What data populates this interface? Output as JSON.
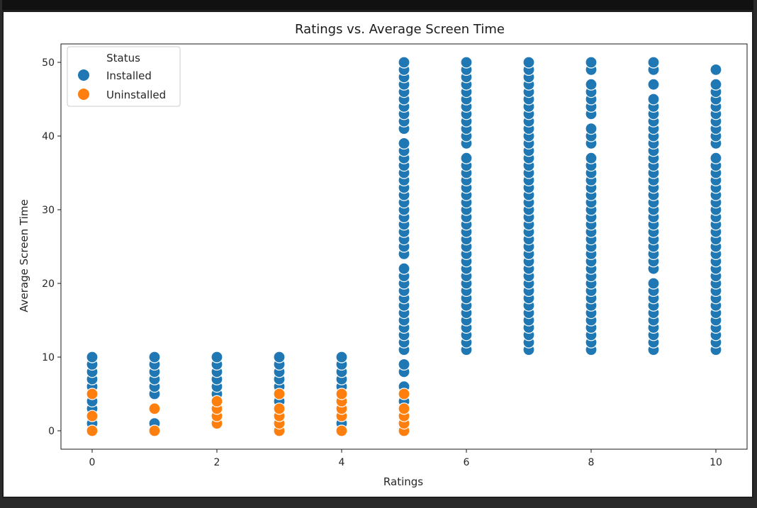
{
  "chart_data": {
    "type": "scatter",
    "title": "Ratings vs. Average Screen Time",
    "xlabel": "Ratings",
    "ylabel": "Average Screen Time",
    "xlim": [
      -0.5,
      10.5
    ],
    "ylim": [
      -2.5,
      52.5
    ],
    "xticks": [
      0,
      2,
      4,
      6,
      8,
      10
    ],
    "yticks": [
      0,
      10,
      20,
      30,
      40,
      50
    ],
    "grid": false,
    "legend": {
      "title": "Status",
      "placement": "top-left",
      "entries": [
        "Installed",
        "Uninstalled"
      ]
    },
    "series": [
      {
        "name": "Installed",
        "color": "#1f77b4",
        "points": [
          [
            0,
            1
          ],
          [
            0,
            3
          ],
          [
            0,
            4
          ],
          [
            0,
            6
          ],
          [
            0,
            7
          ],
          [
            0,
            8
          ],
          [
            0,
            9
          ],
          [
            0,
            10
          ],
          [
            1,
            1
          ],
          [
            1,
            5
          ],
          [
            1,
            6
          ],
          [
            1,
            7
          ],
          [
            1,
            8
          ],
          [
            1,
            9
          ],
          [
            1,
            10
          ],
          [
            2,
            5
          ],
          [
            2,
            6
          ],
          [
            2,
            7
          ],
          [
            2,
            8
          ],
          [
            2,
            9
          ],
          [
            2,
            10
          ],
          [
            3,
            4
          ],
          [
            3,
            6
          ],
          [
            3,
            7
          ],
          [
            3,
            8
          ],
          [
            3,
            9
          ],
          [
            3,
            10
          ],
          [
            4,
            1
          ],
          [
            4,
            6
          ],
          [
            4,
            7
          ],
          [
            4,
            8
          ],
          [
            4,
            9
          ],
          [
            4,
            10
          ],
          [
            5,
            4
          ],
          [
            5,
            6
          ],
          [
            5,
            8
          ],
          [
            5,
            9
          ],
          [
            5,
            11
          ],
          [
            5,
            12
          ],
          [
            5,
            13
          ],
          [
            5,
            14
          ],
          [
            5,
            15
          ],
          [
            5,
            16
          ],
          [
            5,
            17
          ],
          [
            5,
            18
          ],
          [
            5,
            19
          ],
          [
            5,
            20
          ],
          [
            5,
            21
          ],
          [
            5,
            22
          ],
          [
            5,
            24
          ],
          [
            5,
            25
          ],
          [
            5,
            26
          ],
          [
            5,
            27
          ],
          [
            5,
            28
          ],
          [
            5,
            29
          ],
          [
            5,
            30
          ],
          [
            5,
            31
          ],
          [
            5,
            32
          ],
          [
            5,
            33
          ],
          [
            5,
            34
          ],
          [
            5,
            35
          ],
          [
            5,
            36
          ],
          [
            5,
            37
          ],
          [
            5,
            38
          ],
          [
            5,
            39
          ],
          [
            5,
            41
          ],
          [
            5,
            42
          ],
          [
            5,
            43
          ],
          [
            5,
            44
          ],
          [
            5,
            45
          ],
          [
            5,
            46
          ],
          [
            5,
            47
          ],
          [
            5,
            48
          ],
          [
            5,
            49
          ],
          [
            5,
            50
          ],
          [
            6,
            11
          ],
          [
            6,
            12
          ],
          [
            6,
            13
          ],
          [
            6,
            14
          ],
          [
            6,
            15
          ],
          [
            6,
            16
          ],
          [
            6,
            17
          ],
          [
            6,
            18
          ],
          [
            6,
            19
          ],
          [
            6,
            20
          ],
          [
            6,
            21
          ],
          [
            6,
            22
          ],
          [
            6,
            23
          ],
          [
            6,
            24
          ],
          [
            6,
            25
          ],
          [
            6,
            26
          ],
          [
            6,
            27
          ],
          [
            6,
            28
          ],
          [
            6,
            29
          ],
          [
            6,
            30
          ],
          [
            6,
            31
          ],
          [
            6,
            32
          ],
          [
            6,
            33
          ],
          [
            6,
            34
          ],
          [
            6,
            35
          ],
          [
            6,
            36
          ],
          [
            6,
            37
          ],
          [
            6,
            39
          ],
          [
            6,
            40
          ],
          [
            6,
            41
          ],
          [
            6,
            42
          ],
          [
            6,
            43
          ],
          [
            6,
            44
          ],
          [
            6,
            45
          ],
          [
            6,
            46
          ],
          [
            6,
            47
          ],
          [
            6,
            48
          ],
          [
            6,
            49
          ],
          [
            6,
            50
          ],
          [
            7,
            11
          ],
          [
            7,
            12
          ],
          [
            7,
            13
          ],
          [
            7,
            14
          ],
          [
            7,
            15
          ],
          [
            7,
            16
          ],
          [
            7,
            17
          ],
          [
            7,
            18
          ],
          [
            7,
            19
          ],
          [
            7,
            20
          ],
          [
            7,
            21
          ],
          [
            7,
            22
          ],
          [
            7,
            23
          ],
          [
            7,
            24
          ],
          [
            7,
            25
          ],
          [
            7,
            26
          ],
          [
            7,
            27
          ],
          [
            7,
            28
          ],
          [
            7,
            29
          ],
          [
            7,
            30
          ],
          [
            7,
            31
          ],
          [
            7,
            32
          ],
          [
            7,
            33
          ],
          [
            7,
            34
          ],
          [
            7,
            35
          ],
          [
            7,
            36
          ],
          [
            7,
            37
          ],
          [
            7,
            38
          ],
          [
            7,
            39
          ],
          [
            7,
            40
          ],
          [
            7,
            41
          ],
          [
            7,
            42
          ],
          [
            7,
            43
          ],
          [
            7,
            44
          ],
          [
            7,
            45
          ],
          [
            7,
            46
          ],
          [
            7,
            47
          ],
          [
            7,
            48
          ],
          [
            7,
            49
          ],
          [
            7,
            50
          ],
          [
            8,
            11
          ],
          [
            8,
            12
          ],
          [
            8,
            13
          ],
          [
            8,
            14
          ],
          [
            8,
            15
          ],
          [
            8,
            16
          ],
          [
            8,
            17
          ],
          [
            8,
            18
          ],
          [
            8,
            19
          ],
          [
            8,
            20
          ],
          [
            8,
            21
          ],
          [
            8,
            22
          ],
          [
            8,
            23
          ],
          [
            8,
            24
          ],
          [
            8,
            25
          ],
          [
            8,
            26
          ],
          [
            8,
            27
          ],
          [
            8,
            28
          ],
          [
            8,
            29
          ],
          [
            8,
            30
          ],
          [
            8,
            31
          ],
          [
            8,
            32
          ],
          [
            8,
            33
          ],
          [
            8,
            34
          ],
          [
            8,
            35
          ],
          [
            8,
            36
          ],
          [
            8,
            37
          ],
          [
            8,
            39
          ],
          [
            8,
            40
          ],
          [
            8,
            41
          ],
          [
            8,
            43
          ],
          [
            8,
            44
          ],
          [
            8,
            45
          ],
          [
            8,
            46
          ],
          [
            8,
            47
          ],
          [
            8,
            49
          ],
          [
            8,
            50
          ],
          [
            9,
            11
          ],
          [
            9,
            12
          ],
          [
            9,
            13
          ],
          [
            9,
            14
          ],
          [
            9,
            15
          ],
          [
            9,
            16
          ],
          [
            9,
            17
          ],
          [
            9,
            18
          ],
          [
            9,
            19
          ],
          [
            9,
            20
          ],
          [
            9,
            22
          ],
          [
            9,
            23
          ],
          [
            9,
            24
          ],
          [
            9,
            25
          ],
          [
            9,
            26
          ],
          [
            9,
            27
          ],
          [
            9,
            28
          ],
          [
            9,
            29
          ],
          [
            9,
            30
          ],
          [
            9,
            31
          ],
          [
            9,
            32
          ],
          [
            9,
            33
          ],
          [
            9,
            34
          ],
          [
            9,
            35
          ],
          [
            9,
            36
          ],
          [
            9,
            37
          ],
          [
            9,
            38
          ],
          [
            9,
            39
          ],
          [
            9,
            40
          ],
          [
            9,
            41
          ],
          [
            9,
            42
          ],
          [
            9,
            43
          ],
          [
            9,
            44
          ],
          [
            9,
            45
          ],
          [
            9,
            47
          ],
          [
            9,
            49
          ],
          [
            9,
            50
          ],
          [
            10,
            11
          ],
          [
            10,
            12
          ],
          [
            10,
            13
          ],
          [
            10,
            14
          ],
          [
            10,
            15
          ],
          [
            10,
            16
          ],
          [
            10,
            17
          ],
          [
            10,
            18
          ],
          [
            10,
            19
          ],
          [
            10,
            20
          ],
          [
            10,
            21
          ],
          [
            10,
            22
          ],
          [
            10,
            23
          ],
          [
            10,
            24
          ],
          [
            10,
            25
          ],
          [
            10,
            26
          ],
          [
            10,
            27
          ],
          [
            10,
            28
          ],
          [
            10,
            29
          ],
          [
            10,
            30
          ],
          [
            10,
            31
          ],
          [
            10,
            32
          ],
          [
            10,
            33
          ],
          [
            10,
            34
          ],
          [
            10,
            35
          ],
          [
            10,
            36
          ],
          [
            10,
            37
          ],
          [
            10,
            39
          ],
          [
            10,
            40
          ],
          [
            10,
            41
          ],
          [
            10,
            42
          ],
          [
            10,
            43
          ],
          [
            10,
            44
          ],
          [
            10,
            45
          ],
          [
            10,
            46
          ],
          [
            10,
            47
          ],
          [
            10,
            49
          ]
        ]
      },
      {
        "name": "Uninstalled",
        "color": "#ff7f0e",
        "points": [
          [
            0,
            0
          ],
          [
            0,
            2
          ],
          [
            0,
            5
          ],
          [
            1,
            0
          ],
          [
            1,
            3
          ],
          [
            2,
            1
          ],
          [
            2,
            2
          ],
          [
            2,
            3
          ],
          [
            2,
            4
          ],
          [
            3,
            0
          ],
          [
            3,
            1
          ],
          [
            3,
            2
          ],
          [
            3,
            3
          ],
          [
            3,
            5
          ],
          [
            4,
            0
          ],
          [
            4,
            2
          ],
          [
            4,
            3
          ],
          [
            4,
            4
          ],
          [
            4,
            5
          ],
          [
            5,
            0
          ],
          [
            5,
            1
          ],
          [
            5,
            2
          ],
          [
            5,
            3
          ],
          [
            5,
            5
          ]
        ]
      }
    ]
  }
}
